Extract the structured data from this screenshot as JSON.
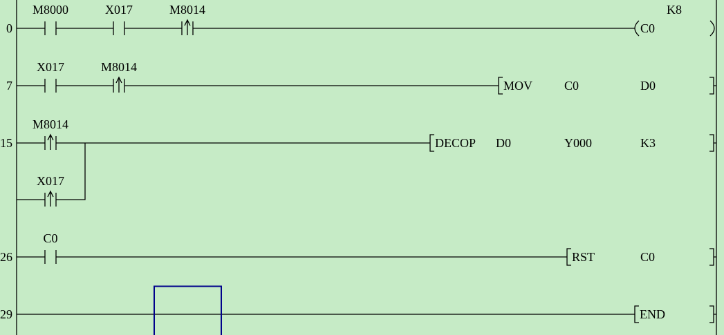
{
  "colors": {
    "background": "#c6ebc6",
    "cursor": "#00008b",
    "wire": "#000000"
  },
  "rungs": [
    {
      "step": "0",
      "contacts": [
        {
          "label": "M8000",
          "type": "normally-open"
        },
        {
          "label": "X017",
          "type": "normally-open"
        },
        {
          "label": "M8014",
          "type": "rising-edge"
        }
      ],
      "output": {
        "type": "coil",
        "device": "C0",
        "setting": "K8"
      }
    },
    {
      "step": "7",
      "contacts": [
        {
          "label": "X017",
          "type": "normally-open"
        },
        {
          "label": "M8014",
          "type": "rising-edge"
        }
      ],
      "output": {
        "type": "instruction",
        "op": "MOV",
        "args": [
          "C0",
          "D0"
        ]
      }
    },
    {
      "step": "15",
      "contacts": [
        {
          "label": "M8014",
          "type": "rising-edge"
        },
        {
          "label": "X017",
          "type": "rising-edge",
          "parallel": true
        }
      ],
      "output": {
        "type": "instruction",
        "op": "DECOP",
        "args": [
          "D0",
          "Y000",
          "K3"
        ]
      }
    },
    {
      "step": "26",
      "contacts": [
        {
          "label": "C0",
          "type": "normally-open"
        }
      ],
      "output": {
        "type": "instruction",
        "op": "RST",
        "args": [
          "C0"
        ]
      }
    },
    {
      "step": "29",
      "contacts": [],
      "output": {
        "type": "instruction",
        "op": "END",
        "args": []
      }
    }
  ]
}
